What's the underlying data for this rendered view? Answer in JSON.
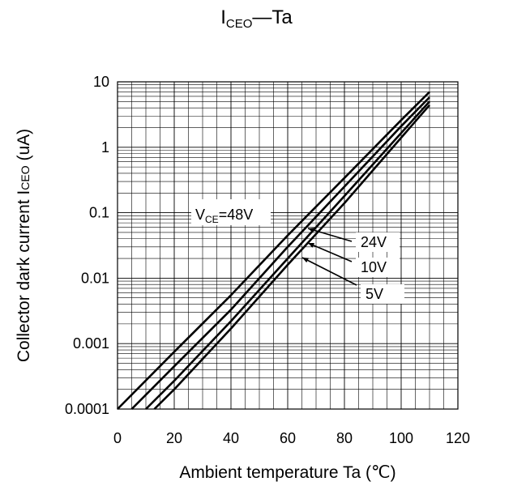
{
  "title": {
    "main": "I",
    "sub": "CEO",
    "rest": "—Ta"
  },
  "chart_data": {
    "type": "line",
    "xlabel": "Ambient temperature  Ta (℃)",
    "ylabel_prefix": "Collector dark current  I",
    "ylabel_sub": "CEO",
    "ylabel_suffix": " (uA)",
    "xlim": [
      0,
      120
    ],
    "ylim": [
      0.0001,
      10
    ],
    "yscale": "log",
    "grid": true,
    "x_ticks": [
      "0",
      "20",
      "40",
      "60",
      "80",
      "100",
      "120"
    ],
    "x_tick_values": [
      0,
      20,
      40,
      60,
      80,
      100,
      120
    ],
    "y_ticks": [
      "0.0001",
      "0.001",
      "0.01",
      "0.1",
      "1",
      "10"
    ],
    "y_tick_values": [
      0.0001,
      0.001,
      0.01,
      0.1,
      1,
      10
    ],
    "series": [
      {
        "name": "V_CE=48V",
        "x": [
          0,
          20,
          40,
          60,
          80,
          100,
          110
        ],
        "y": [
          0.0001,
          0.00075,
          0.0055,
          0.045,
          0.34,
          2.6,
          7.0
        ]
      },
      {
        "name": "24V",
        "x": [
          5,
          20,
          40,
          60,
          80,
          100,
          110
        ],
        "y": [
          0.0001,
          0.00045,
          0.0033,
          0.03,
          0.25,
          2.1,
          5.8
        ]
      },
      {
        "name": "10V",
        "x": [
          10,
          20,
          40,
          60,
          80,
          100,
          110
        ],
        "y": [
          0.0001,
          0.00027,
          0.0022,
          0.02,
          0.18,
          1.65,
          5.0
        ]
      },
      {
        "name": "5V",
        "x": [
          13,
          20,
          40,
          60,
          80,
          100,
          110
        ],
        "y": [
          0.0001,
          0.0002,
          0.0017,
          0.016,
          0.14,
          1.4,
          4.4
        ]
      }
    ],
    "annotations": {
      "vce_label_prefix": "V",
      "vce_label_sub": "CE",
      "vce_label_suffix": "=48V",
      "labels": [
        "24V",
        "10V",
        "5V"
      ]
    }
  }
}
